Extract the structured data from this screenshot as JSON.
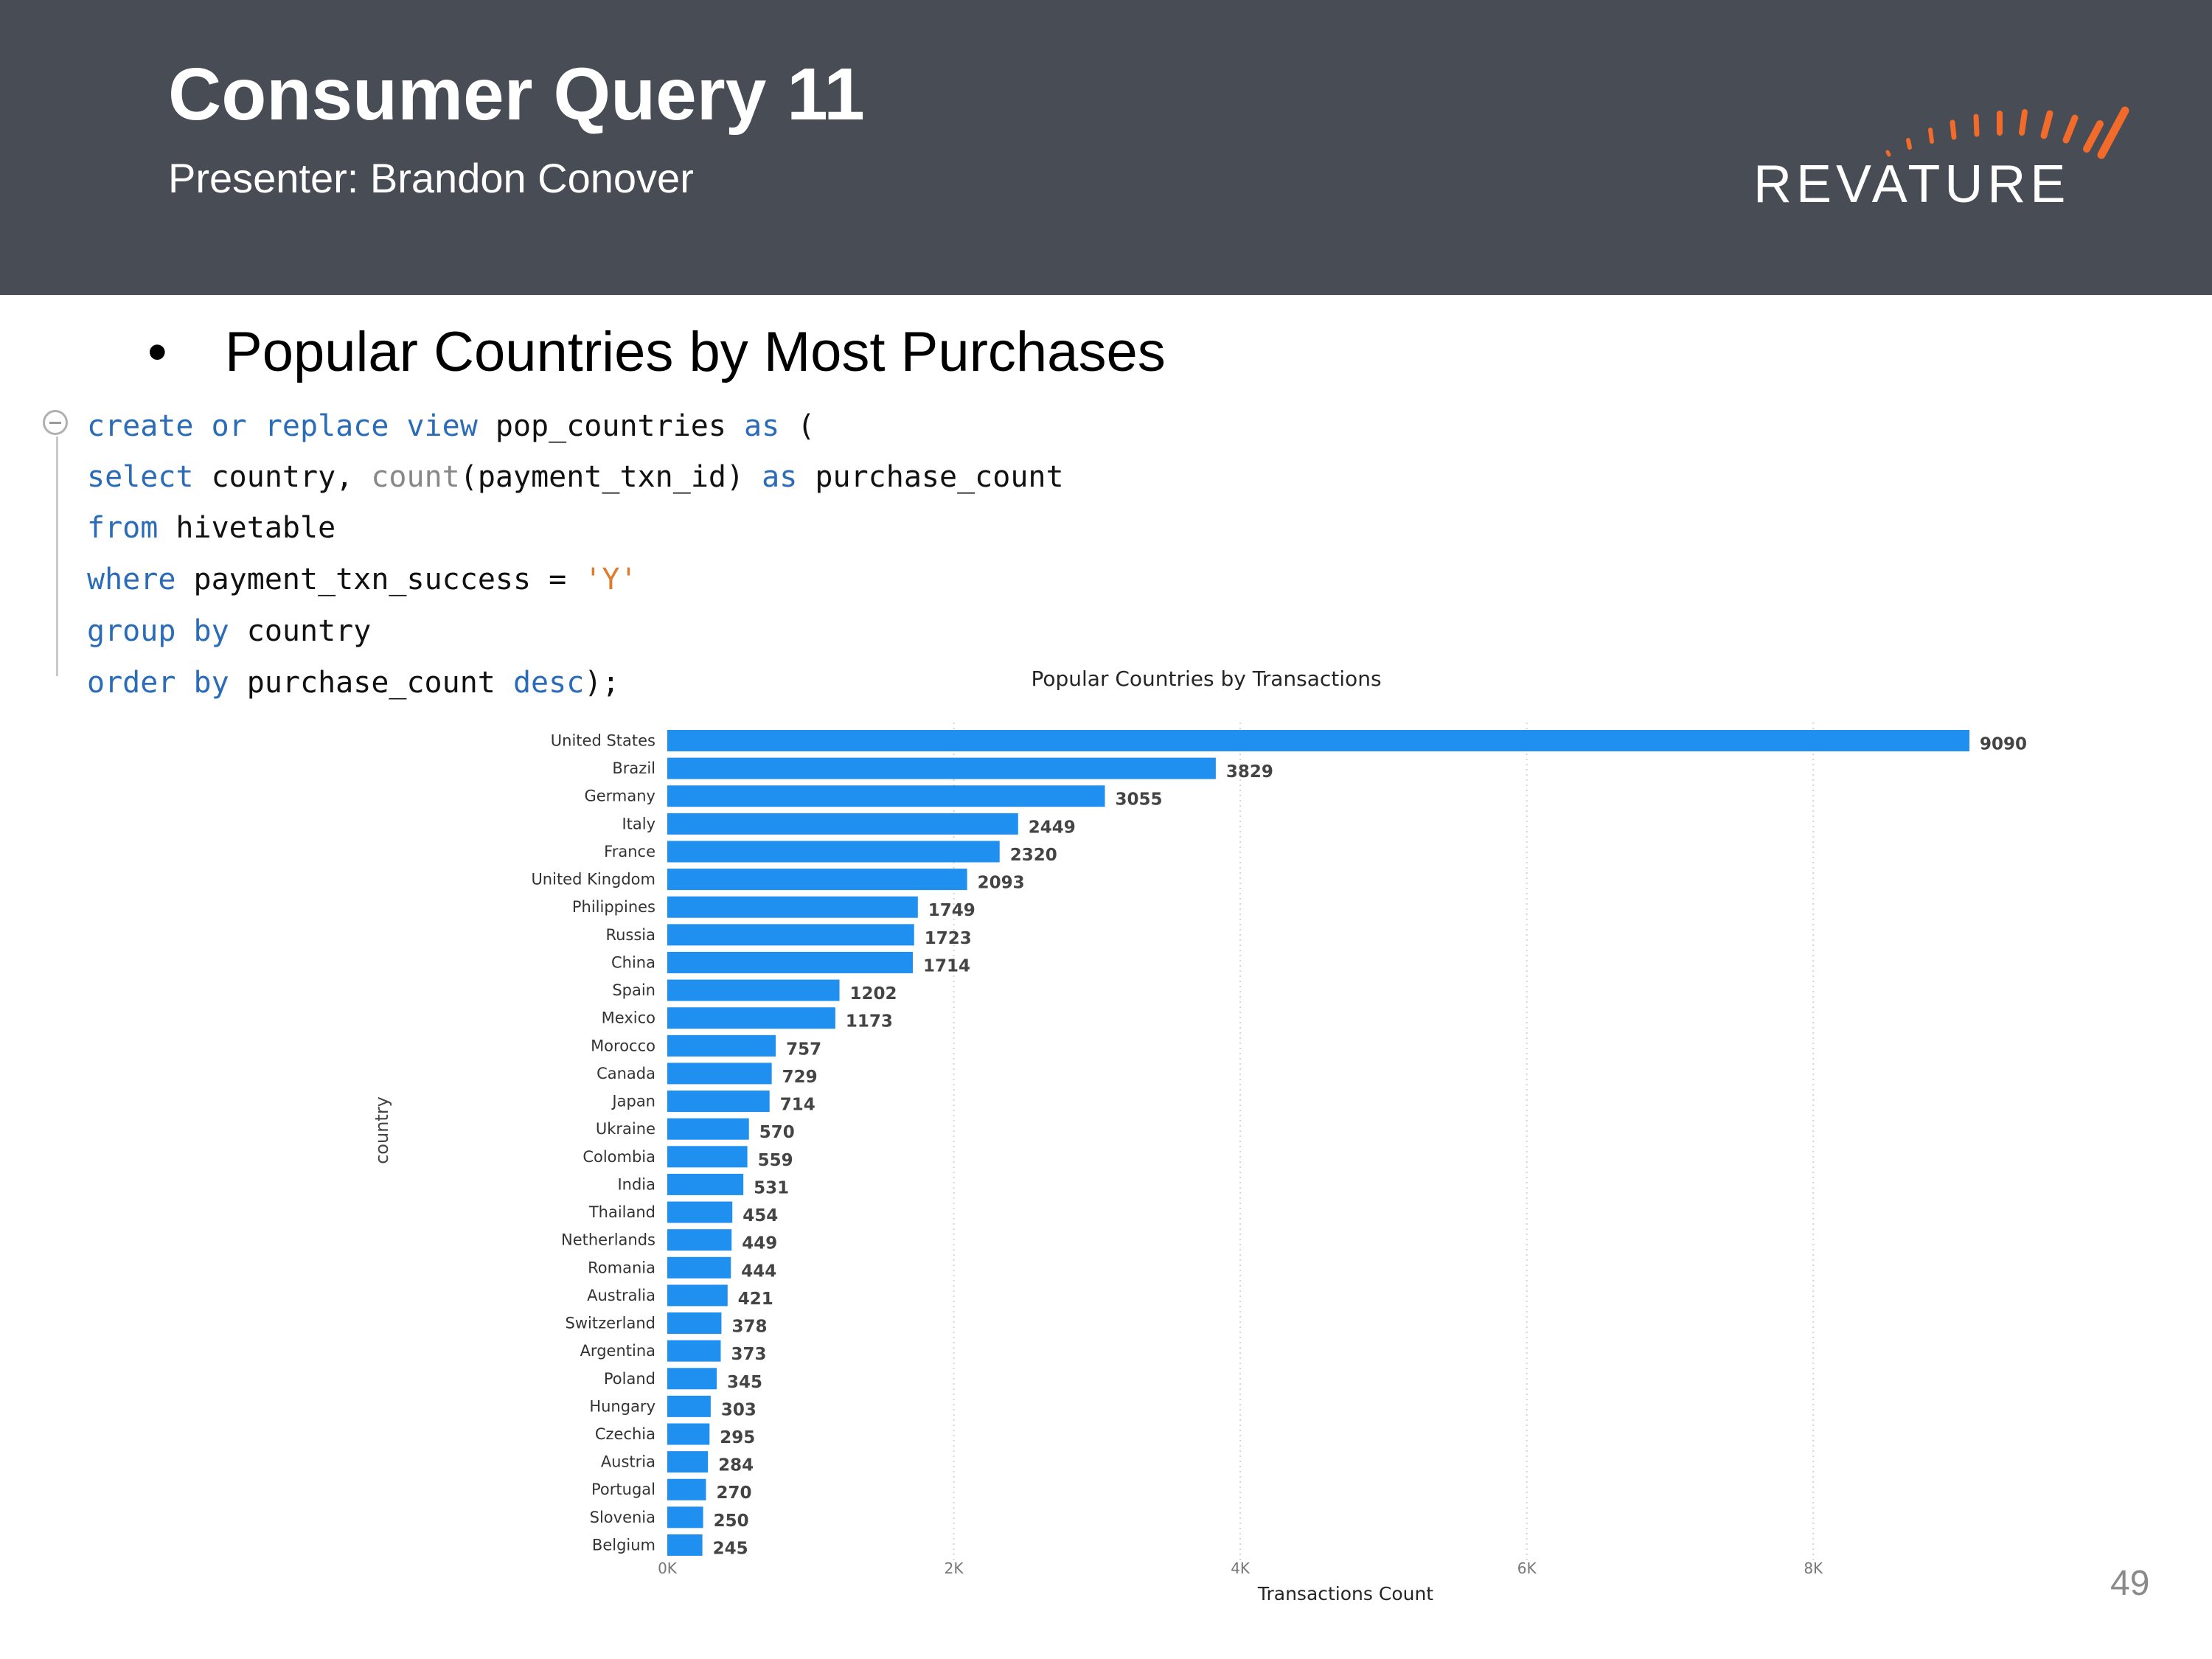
{
  "slide": {
    "title": "Consumer Query 11",
    "subtitle": "Presenter: Brandon Conover",
    "logo_text": "REVATURE",
    "bullet_marker": "•",
    "bullet_text": "Popular Countries by Most Purchases",
    "page_number": "49"
  },
  "colors": {
    "header_bg": "#474c55",
    "logo_accent": "#f26b2a",
    "bar": "#1f8ff0",
    "keyword": "#2b6cb8"
  },
  "code": {
    "lines": [
      [
        {
          "t": "create or replace view",
          "c": "kw"
        },
        {
          "t": " pop_countries ",
          "c": ""
        },
        {
          "t": "as",
          "c": "kw"
        },
        {
          "t": " (",
          "c": ""
        }
      ],
      [
        {
          "t": "select",
          "c": "kw"
        },
        {
          "t": " country, ",
          "c": ""
        },
        {
          "t": "count",
          "c": "fn"
        },
        {
          "t": "(payment_txn_id) ",
          "c": ""
        },
        {
          "t": "as",
          "c": "kw"
        },
        {
          "t": " purchase_count",
          "c": ""
        }
      ],
      [
        {
          "t": "from",
          "c": "kw"
        },
        {
          "t": " hivetable",
          "c": ""
        }
      ],
      [
        {
          "t": "where",
          "c": "kw"
        },
        {
          "t": " payment_txn_success = ",
          "c": ""
        },
        {
          "t": "'Y'",
          "c": "str"
        }
      ],
      [
        {
          "t": "group by",
          "c": "kw"
        },
        {
          "t": " country",
          "c": ""
        }
      ],
      [
        {
          "t": "order by",
          "c": "kw"
        },
        {
          "t": " purchase_count ",
          "c": ""
        },
        {
          "t": "desc",
          "c": "kw"
        },
        {
          "t": ");",
          "c": ""
        }
      ]
    ]
  },
  "chart_data": {
    "type": "bar",
    "orientation": "horizontal",
    "title": "Popular Countries by Transactions",
    "xlabel": "Transactions Count",
    "ylabel": "country",
    "xlim": [
      0,
      9090
    ],
    "xticks": [
      0,
      2000,
      4000,
      6000,
      8000
    ],
    "xtick_labels": [
      "0K",
      "2K",
      "4K",
      "6K",
      "8K"
    ],
    "grid": "vertical dotted",
    "categories": [
      "United States",
      "Brazil",
      "Germany",
      "Italy",
      "France",
      "United Kingdom",
      "Philippines",
      "Russia",
      "China",
      "Spain",
      "Mexico",
      "Morocco",
      "Canada",
      "Japan",
      "Ukraine",
      "Colombia",
      "India",
      "Thailand",
      "Netherlands",
      "Romania",
      "Australia",
      "Switzerland",
      "Argentina",
      "Poland",
      "Hungary",
      "Czechia",
      "Austria",
      "Portugal",
      "Slovenia",
      "Belgium"
    ],
    "values": [
      9090,
      3829,
      3055,
      2449,
      2320,
      2093,
      1749,
      1723,
      1714,
      1202,
      1173,
      757,
      729,
      714,
      570,
      559,
      531,
      454,
      449,
      444,
      421,
      378,
      373,
      345,
      303,
      295,
      284,
      270,
      250,
      245
    ]
  }
}
